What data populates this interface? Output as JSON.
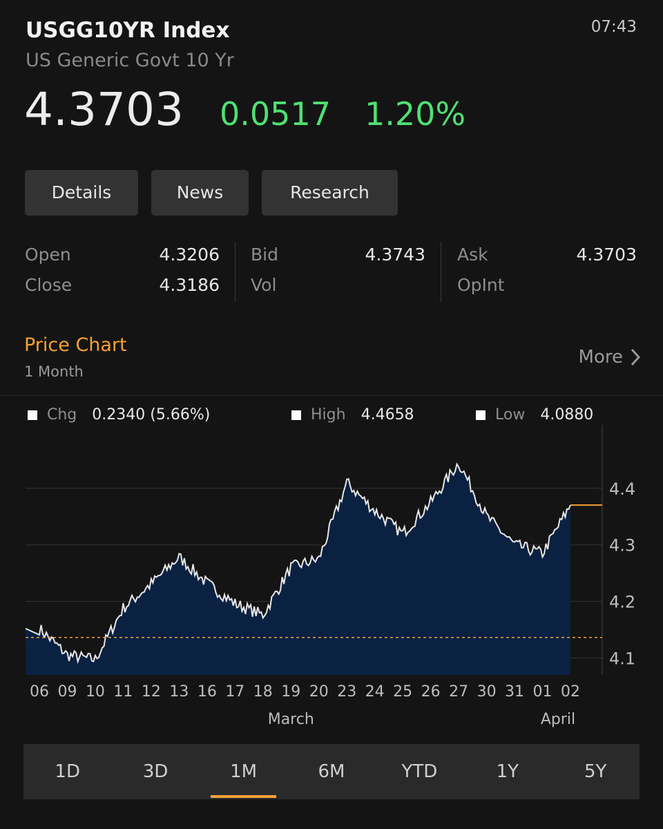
{
  "header": {
    "title": "USGG10YR Index",
    "subtitle": "US Generic Govt 10 Yr",
    "time": "07:43",
    "last": "4.3703",
    "change": "0.0517",
    "change_pct": "1.20%"
  },
  "buttons": {
    "details": "Details",
    "news": "News",
    "research": "Research"
  },
  "quotes": {
    "open_label": "Open",
    "open_value": "4.3206",
    "close_label": "Close",
    "close_value": "4.3186",
    "bid_label": "Bid",
    "bid_value": "4.3743",
    "vol_label": "Vol",
    "ask_label": "Ask",
    "ask_value": "4.3703",
    "opint_label": "OpInt"
  },
  "price_chart": {
    "title": "Price Chart",
    "period": "1 Month",
    "more_label": "More"
  },
  "legend": {
    "chg_label": "Chg",
    "chg_value": "0.2340 (5.66%)",
    "high_label": "High",
    "high_value": "4.4658",
    "low_label": "Low",
    "low_value": "4.0880"
  },
  "colors": {
    "accent": "#f5a235",
    "positive": "#4fe072",
    "area_fill": "#0b2142",
    "line": "#e8e8e8",
    "background": "#141414"
  },
  "chart_data": {
    "type": "area",
    "x": [
      "06",
      "09",
      "10",
      "11",
      "12",
      "13",
      "16",
      "17",
      "18",
      "19",
      "20",
      "23",
      "24",
      "25",
      "26",
      "27",
      "30",
      "31",
      "01",
      "02"
    ],
    "y": [
      4.152,
      4.105,
      4.097,
      4.188,
      4.231,
      4.278,
      4.232,
      4.196,
      4.176,
      4.26,
      4.275,
      4.41,
      4.36,
      4.32,
      4.375,
      4.445,
      4.35,
      4.3,
      4.285,
      4.37
    ],
    "month_labels": [
      "March",
      "April"
    ],
    "y_ticks": [
      "4.4",
      "4.3",
      "4.2",
      "4.1"
    ],
    "ylim": [
      4.07,
      4.5
    ],
    "reference_line": 4.1363,
    "last_value": 4.3703,
    "grid": true
  },
  "tabs": [
    "1D",
    "3D",
    "1M",
    "6M",
    "YTD",
    "1Y",
    "5Y"
  ],
  "active_tab": "1M"
}
